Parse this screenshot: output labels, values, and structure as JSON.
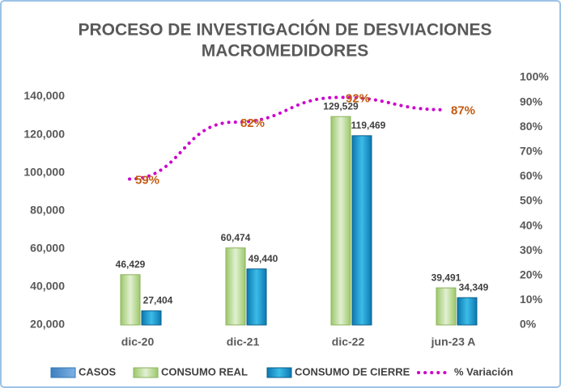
{
  "chart_data": {
    "type": "bar",
    "title": [
      "PROCESO DE INVESTIGACIÓN DE DESVIACIONES",
      "MACROMEDIDORES"
    ],
    "categories": [
      "dic-20",
      "dic-21",
      "dic-22",
      "jun-23 A"
    ],
    "series": [
      {
        "name": "CASOS",
        "color": "#5b9bd5",
        "values": [
          null,
          null,
          null,
          null
        ]
      },
      {
        "name": "CONSUMO REAL",
        "color": "#c5e0a5",
        "values": [
          46429,
          60474,
          129529,
          39491
        ],
        "value_labels": [
          "46,429",
          "60,474",
          "129,529",
          "39,491"
        ]
      },
      {
        "name": "CONSUMO DE CIERRE",
        "color": "#1fa3d6",
        "values": [
          27404,
          49440,
          119469,
          34349
        ],
        "value_labels": [
          "27,404",
          "49,440",
          "119,469",
          "34,349"
        ]
      },
      {
        "name": "% Variación",
        "type": "line",
        "axis": "y2",
        "color": "#cc00cc",
        "label_color": "#c55a11",
        "values": [
          59,
          82,
          92,
          87
        ],
        "value_labels": [
          "59%",
          "82%",
          "92%",
          "87%"
        ]
      }
    ],
    "ylim": [
      20000,
      150000
    ],
    "yticks": [
      {
        "value": 20000,
        "label": "20,000"
      },
      {
        "value": 40000,
        "label": "40,000"
      },
      {
        "value": 60000,
        "label": "60,000"
      },
      {
        "value": 80000,
        "label": "80,000"
      },
      {
        "value": 100000,
        "label": "100,000"
      },
      {
        "value": 120000,
        "label": "120,000"
      },
      {
        "value": 140000,
        "label": "140,000"
      }
    ],
    "y2lim": [
      0,
      100
    ],
    "y2ticks": [
      {
        "value": 0,
        "label": "0%"
      },
      {
        "value": 10,
        "label": "10%"
      },
      {
        "value": 20,
        "label": "20%"
      },
      {
        "value": 30,
        "label": "30%"
      },
      {
        "value": 40,
        "label": "40%"
      },
      {
        "value": 50,
        "label": "50%"
      },
      {
        "value": 60,
        "label": "60%"
      },
      {
        "value": 70,
        "label": "70%"
      },
      {
        "value": 80,
        "label": "80%"
      },
      {
        "value": 90,
        "label": "90%"
      },
      {
        "value": 100,
        "label": "100%"
      }
    ],
    "grid": false,
    "legend": "bottom"
  }
}
